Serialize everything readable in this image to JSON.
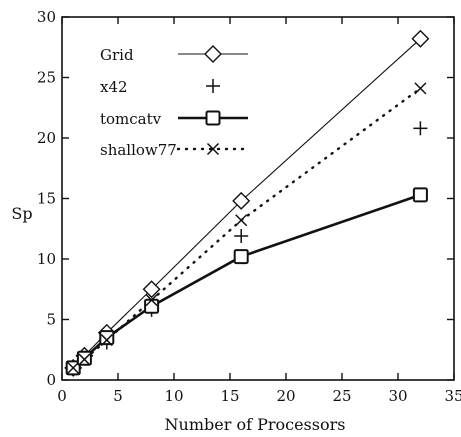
{
  "chart_data": {
    "type": "line",
    "title": "",
    "xlabel": "Number of Processors",
    "ylabel": "Sp",
    "xlim": [
      0,
      35
    ],
    "ylim": [
      0,
      30
    ],
    "x_ticks": [
      0,
      5,
      10,
      15,
      20,
      25,
      30,
      35
    ],
    "y_ticks": [
      0,
      5,
      10,
      15,
      20,
      25,
      30
    ],
    "x_tick_labels": [
      "0",
      "5",
      "10",
      "15",
      "20",
      "25",
      "30",
      "35"
    ],
    "y_tick_labels": [
      "0",
      "5",
      "10",
      "15",
      "20",
      "25",
      "30"
    ],
    "grid": false,
    "legend_position": "top-left",
    "series": [
      {
        "name": "Grid",
        "marker": "diamond",
        "line": "thin-solid",
        "x": [
          1,
          2,
          4,
          8,
          16,
          32
        ],
        "y": [
          1,
          2,
          3.9,
          7.5,
          14.8,
          28.2
        ]
      },
      {
        "name": "x42",
        "marker": "plus",
        "line": "none",
        "x": [
          1,
          2,
          4,
          8,
          16,
          32
        ],
        "y": [
          1,
          1.8,
          3.1,
          5.8,
          11.9,
          20.8
        ]
      },
      {
        "name": "tomcatv",
        "marker": "square",
        "line": "thick-solid",
        "x": [
          1,
          2,
          4,
          8,
          16,
          32
        ],
        "y": [
          1,
          1.8,
          3.5,
          6.1,
          10.2,
          15.3
        ]
      },
      {
        "name": "shallow77",
        "marker": "x",
        "line": "dotted",
        "x": [
          1,
          2,
          4,
          8,
          16,
          32
        ],
        "y": [
          1,
          1.7,
          3.3,
          6.6,
          13.2,
          24.1
        ]
      }
    ]
  }
}
